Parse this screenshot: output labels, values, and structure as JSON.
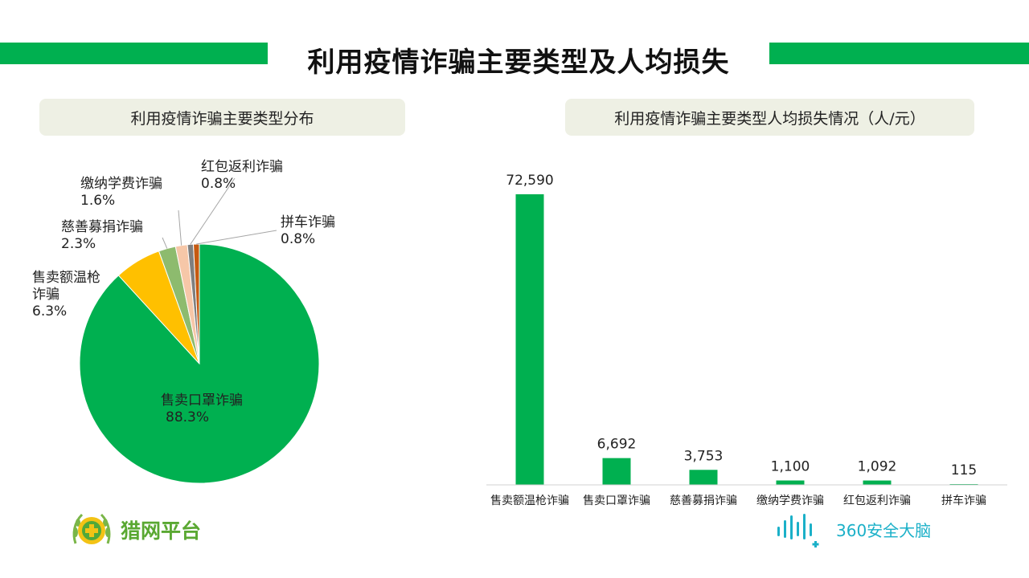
{
  "title": "利用疫情诈骗主要类型及人均损失",
  "pie_panel_title": "利用疫情诈骗主要类型分布",
  "bar_panel_title": "利用疫情诈骗主要类型人均损失情况（人/元）",
  "logo_left_text": "猎网平台",
  "logo_right_text": "360安全大脑",
  "colors": {
    "accent": "#00b050",
    "pie": [
      "#00b050",
      "#ffc000",
      "#8dbb6e",
      "#f6c7a8",
      "#7f7f7f",
      "#c55a11"
    ]
  },
  "chart_data": [
    {
      "type": "pie",
      "slices": [
        {
          "label": "售卖口罩诈骗",
          "value": 88.3,
          "display": "88.3%"
        },
        {
          "label": "售卖额温枪诈骗",
          "value": 6.3,
          "display": "6.3%"
        },
        {
          "label": "慈善募捐诈骗",
          "value": 2.3,
          "display": "2.3%"
        },
        {
          "label": "缴纳学费诈骗",
          "value": 1.6,
          "display": "1.6%"
        },
        {
          "label": "红包返利诈骗",
          "value": 0.8,
          "display": "0.8%"
        },
        {
          "label": "拼车诈骗",
          "value": 0.8,
          "display": "0.8%"
        }
      ]
    },
    {
      "type": "bar",
      "categories": [
        "售卖额温枪诈骗",
        "售卖口罩诈骗",
        "慈善募捐诈骗",
        "缴纳学费诈骗",
        "红包返利诈骗",
        "拼车诈骗"
      ],
      "values": [
        72590,
        6692,
        3753,
        1100,
        1092,
        115
      ],
      "value_labels": [
        "72,590",
        "6,692",
        "3,753",
        "1,100",
        "1,092",
        "115"
      ]
    }
  ]
}
